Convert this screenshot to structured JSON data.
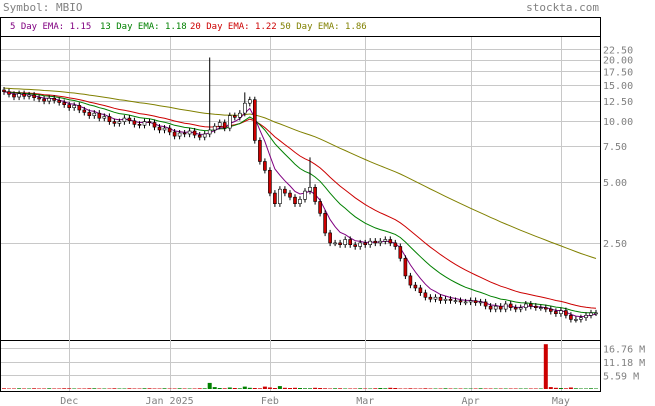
{
  "header": {
    "symbol_text": "Symbol: MBIO",
    "site_text": "stockta.com"
  },
  "legend": [
    {
      "label": "5 Day EMA: 1.15",
      "color": "#800080"
    },
    {
      "label": "13 Day EMA: 1.18",
      "color": "#008000"
    },
    {
      "label": "20 Day EMA: 1.22",
      "color": "#cc0000"
    },
    {
      "label": "50 Day EMA: 1.86",
      "color": "#808000"
    }
  ],
  "colors": {
    "up_candle": "#ffffff",
    "down_candle": "#cc0000",
    "volume_up": "#008000",
    "volume_down": "#cc0000",
    "grid": "#c8c8c8",
    "frame": "#000000",
    "label_gray": "#808080"
  },
  "chart_data": {
    "type": "candlestick",
    "title": "Symbol: MBIO",
    "y_scale": "log",
    "ylim": [
      0.85,
      25
    ],
    "grid": true,
    "price_ticks": [
      "22.50",
      "20.00",
      "17.50",
      "15.00",
      "12.50",
      "10.00",
      "7.50",
      "5.00",
      "2.50"
    ],
    "x_ticks": [
      "Dec",
      "Jan 2025",
      "Feb",
      "Mar",
      "Apr",
      "May"
    ],
    "volume_ticks": [
      "16.76 M",
      "11.18 M",
      "5.59 M"
    ],
    "volume_max": 19,
    "ohlc_close": [
      13.9,
      13.5,
      13.1,
      13.6,
      13.2,
      13.4,
      13.0,
      12.8,
      12.5,
      12.9,
      12.6,
      12.3,
      12.0,
      11.6,
      11.9,
      11.3,
      11.0,
      10.6,
      10.9,
      10.3,
      10.5,
      9.9,
      9.7,
      9.9,
      10.3,
      10.0,
      9.6,
      9.5,
      9.9,
      9.8,
      9.3,
      9.0,
      9.2,
      8.8,
      8.4,
      8.7,
      8.6,
      8.9,
      8.5,
      8.3,
      8.6,
      9.0,
      9.4,
      9.8,
      9.2,
      10.6,
      10.4,
      10.9,
      12.2,
      12.7,
      8.0,
      6.3,
      5.7,
      4.4,
      3.9,
      4.6,
      4.4,
      4.2,
      3.9,
      4.1,
      4.5,
      4.7,
      4.0,
      3.5,
      2.8,
      2.5,
      2.5,
      2.45,
      2.6,
      2.45,
      2.4,
      2.5,
      2.45,
      2.55,
      2.5,
      2.55,
      2.6,
      2.5,
      2.4,
      2.1,
      1.72,
      1.55,
      1.5,
      1.42,
      1.35,
      1.32,
      1.35,
      1.3,
      1.32,
      1.3,
      1.3,
      1.28,
      1.28,
      1.3,
      1.27,
      1.28,
      1.22,
      1.18,
      1.22,
      1.18,
      1.25,
      1.2,
      1.18,
      1.2,
      1.25,
      1.22,
      1.2,
      1.2,
      1.18,
      1.15,
      1.12,
      1.16,
      1.1,
      1.05,
      1.05,
      1.07,
      1.1,
      1.13,
      1.13
    ],
    "volume_millions": [
      0.3,
      0.2,
      0.2,
      0.3,
      0.2,
      0.2,
      0.3,
      0.2,
      0.2,
      0.3,
      0.2,
      0.2,
      0.3,
      0.3,
      0.2,
      0.2,
      0.2,
      0.3,
      0.3,
      0.2,
      0.2,
      0.2,
      0.3,
      0.2,
      0.2,
      0.3,
      0.2,
      0.2,
      0.3,
      0.3,
      0.2,
      0.2,
      0.3,
      0.2,
      0.2,
      0.3,
      0.2,
      0.2,
      0.2,
      0.3,
      0.3,
      2.5,
      0.8,
      0.4,
      0.3,
      0.6,
      0.4,
      0.3,
      1.0,
      0.5,
      0.4,
      0.3,
      1.0,
      0.6,
      0.4,
      1.2,
      0.5,
      0.4,
      0.5,
      0.4,
      0.3,
      0.3,
      0.5,
      0.4,
      0.3,
      0.2,
      0.3,
      0.3,
      0.2,
      0.2,
      0.2,
      0.3,
      0.2,
      0.2,
      0.3,
      0.4,
      0.3,
      0.5,
      0.4,
      0.2,
      0.2,
      0.3,
      0.2,
      0.2,
      0.3,
      0.2,
      0.2,
      0.2,
      0.3,
      0.2,
      0.2,
      0.2,
      0.2,
      0.2,
      0.2,
      0.3,
      0.2,
      0.2,
      0.2,
      0.2,
      0.2,
      0.2,
      0.2,
      0.2,
      0.2,
      0.2,
      0.2,
      0.2,
      18.5,
      0.8,
      0.5,
      0.4,
      0.3,
      0.6,
      0.3,
      0.2,
      0.2,
      0.3,
      0.2
    ]
  }
}
